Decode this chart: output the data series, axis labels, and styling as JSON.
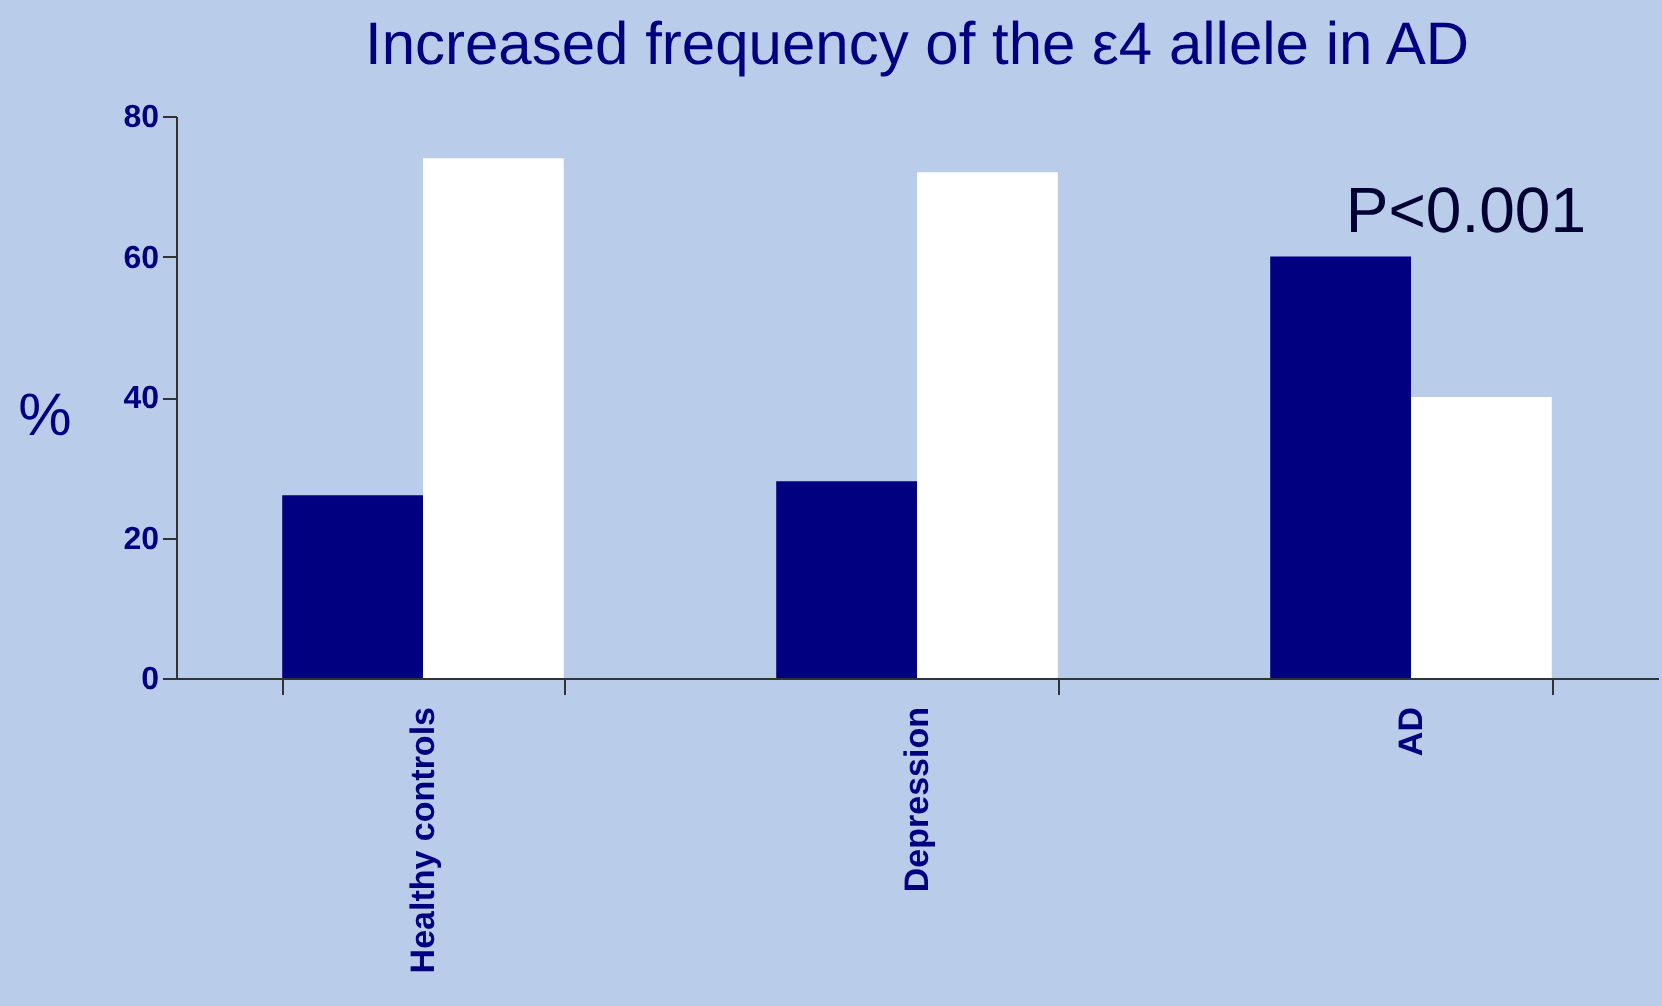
{
  "chart_data": {
    "type": "bar",
    "title": "Increased frequency of the ε4 allele in AD",
    "ylabel": "%",
    "categories": [
      "Healthy controls",
      "Depression",
      "AD"
    ],
    "series": [
      {
        "color": "#000080",
        "values": [
          26,
          28,
          60
        ]
      },
      {
        "color": "#ffffff",
        "values": [
          74,
          72,
          40
        ]
      }
    ],
    "ylim": [
      0,
      80
    ],
    "yticks": [
      0,
      20,
      40,
      60,
      80
    ],
    "grid": false,
    "legend": false,
    "annotations": [
      "P<0.001"
    ]
  }
}
